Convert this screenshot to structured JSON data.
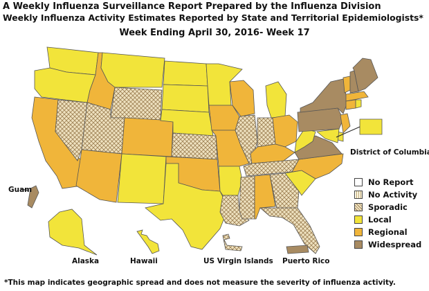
{
  "title_line1": "A Weekly Influenza Surveillance Report Prepared by the Influenza Division",
  "title_line2": "Weekly Influenza Activity Estimates Reported by State and Territorial Epidemiologists*",
  "week_line": "Week Ending April 30, 2016- Week 17",
  "footnote": "*This map indicates geographic spread and does not measure the severity of influenza activity.",
  "colors": {
    "no_report": "#ffffff",
    "no_activity": "#fffbe6",
    "sporadic": "#ead9b0",
    "local": "#f2e43a",
    "regional": "#f0b53a",
    "widespread": "#a88b62",
    "border": "#555555"
  },
  "legend": [
    {
      "key": "no_report",
      "label": "No Report"
    },
    {
      "key": "no_activity",
      "label": "No Activity"
    },
    {
      "key": "sporadic",
      "label": "Sporadic"
    },
    {
      "key": "local",
      "label": "Local"
    },
    {
      "key": "regional",
      "label": "Regional"
    },
    {
      "key": "widespread",
      "label": "Widespread"
    }
  ],
  "region_labels": {
    "dc": "District of Columbia",
    "guam": "Guam",
    "alaska": "Alaska",
    "hawaii": "Hawaii",
    "usvi": "US Virgin Islands",
    "pr": "Puerto Rico"
  },
  "activity": {
    "WA": "local",
    "OR": "local",
    "CA": "regional",
    "NV": "sporadic",
    "ID": "regional",
    "MT": "local",
    "WY": "sporadic",
    "UT": "sporadic",
    "AZ": "regional",
    "CO": "regional",
    "NM": "local",
    "ND": "local",
    "SD": "local",
    "NE": "local",
    "KS": "sporadic",
    "OK": "regional",
    "TX": "local",
    "MN": "local",
    "IA": "regional",
    "MO": "regional",
    "AR": "local",
    "LA": "sporadic",
    "WI": "regional",
    "IL": "sporadic",
    "MI": "local",
    "IN": "sporadic",
    "OH": "regional",
    "KY": "regional",
    "TN": "sporadic",
    "MS": "sporadic",
    "AL": "regional",
    "GA": "sporadic",
    "FL": "sporadic",
    "SC": "local",
    "NC": "regional",
    "VA": "widespread",
    "WV": "local",
    "PA": "widespread",
    "NY": "widespread",
    "VT": "regional",
    "NH": "widespread",
    "ME": "widespread",
    "MA": "regional",
    "NJ": "regional",
    "MD": "local",
    "DE": "local",
    "CT": "regional",
    "RI": "local",
    "DC": "local",
    "AK": "local",
    "HI": "local",
    "GU": "widespread",
    "VI": "sporadic",
    "PR": "widespread"
  }
}
